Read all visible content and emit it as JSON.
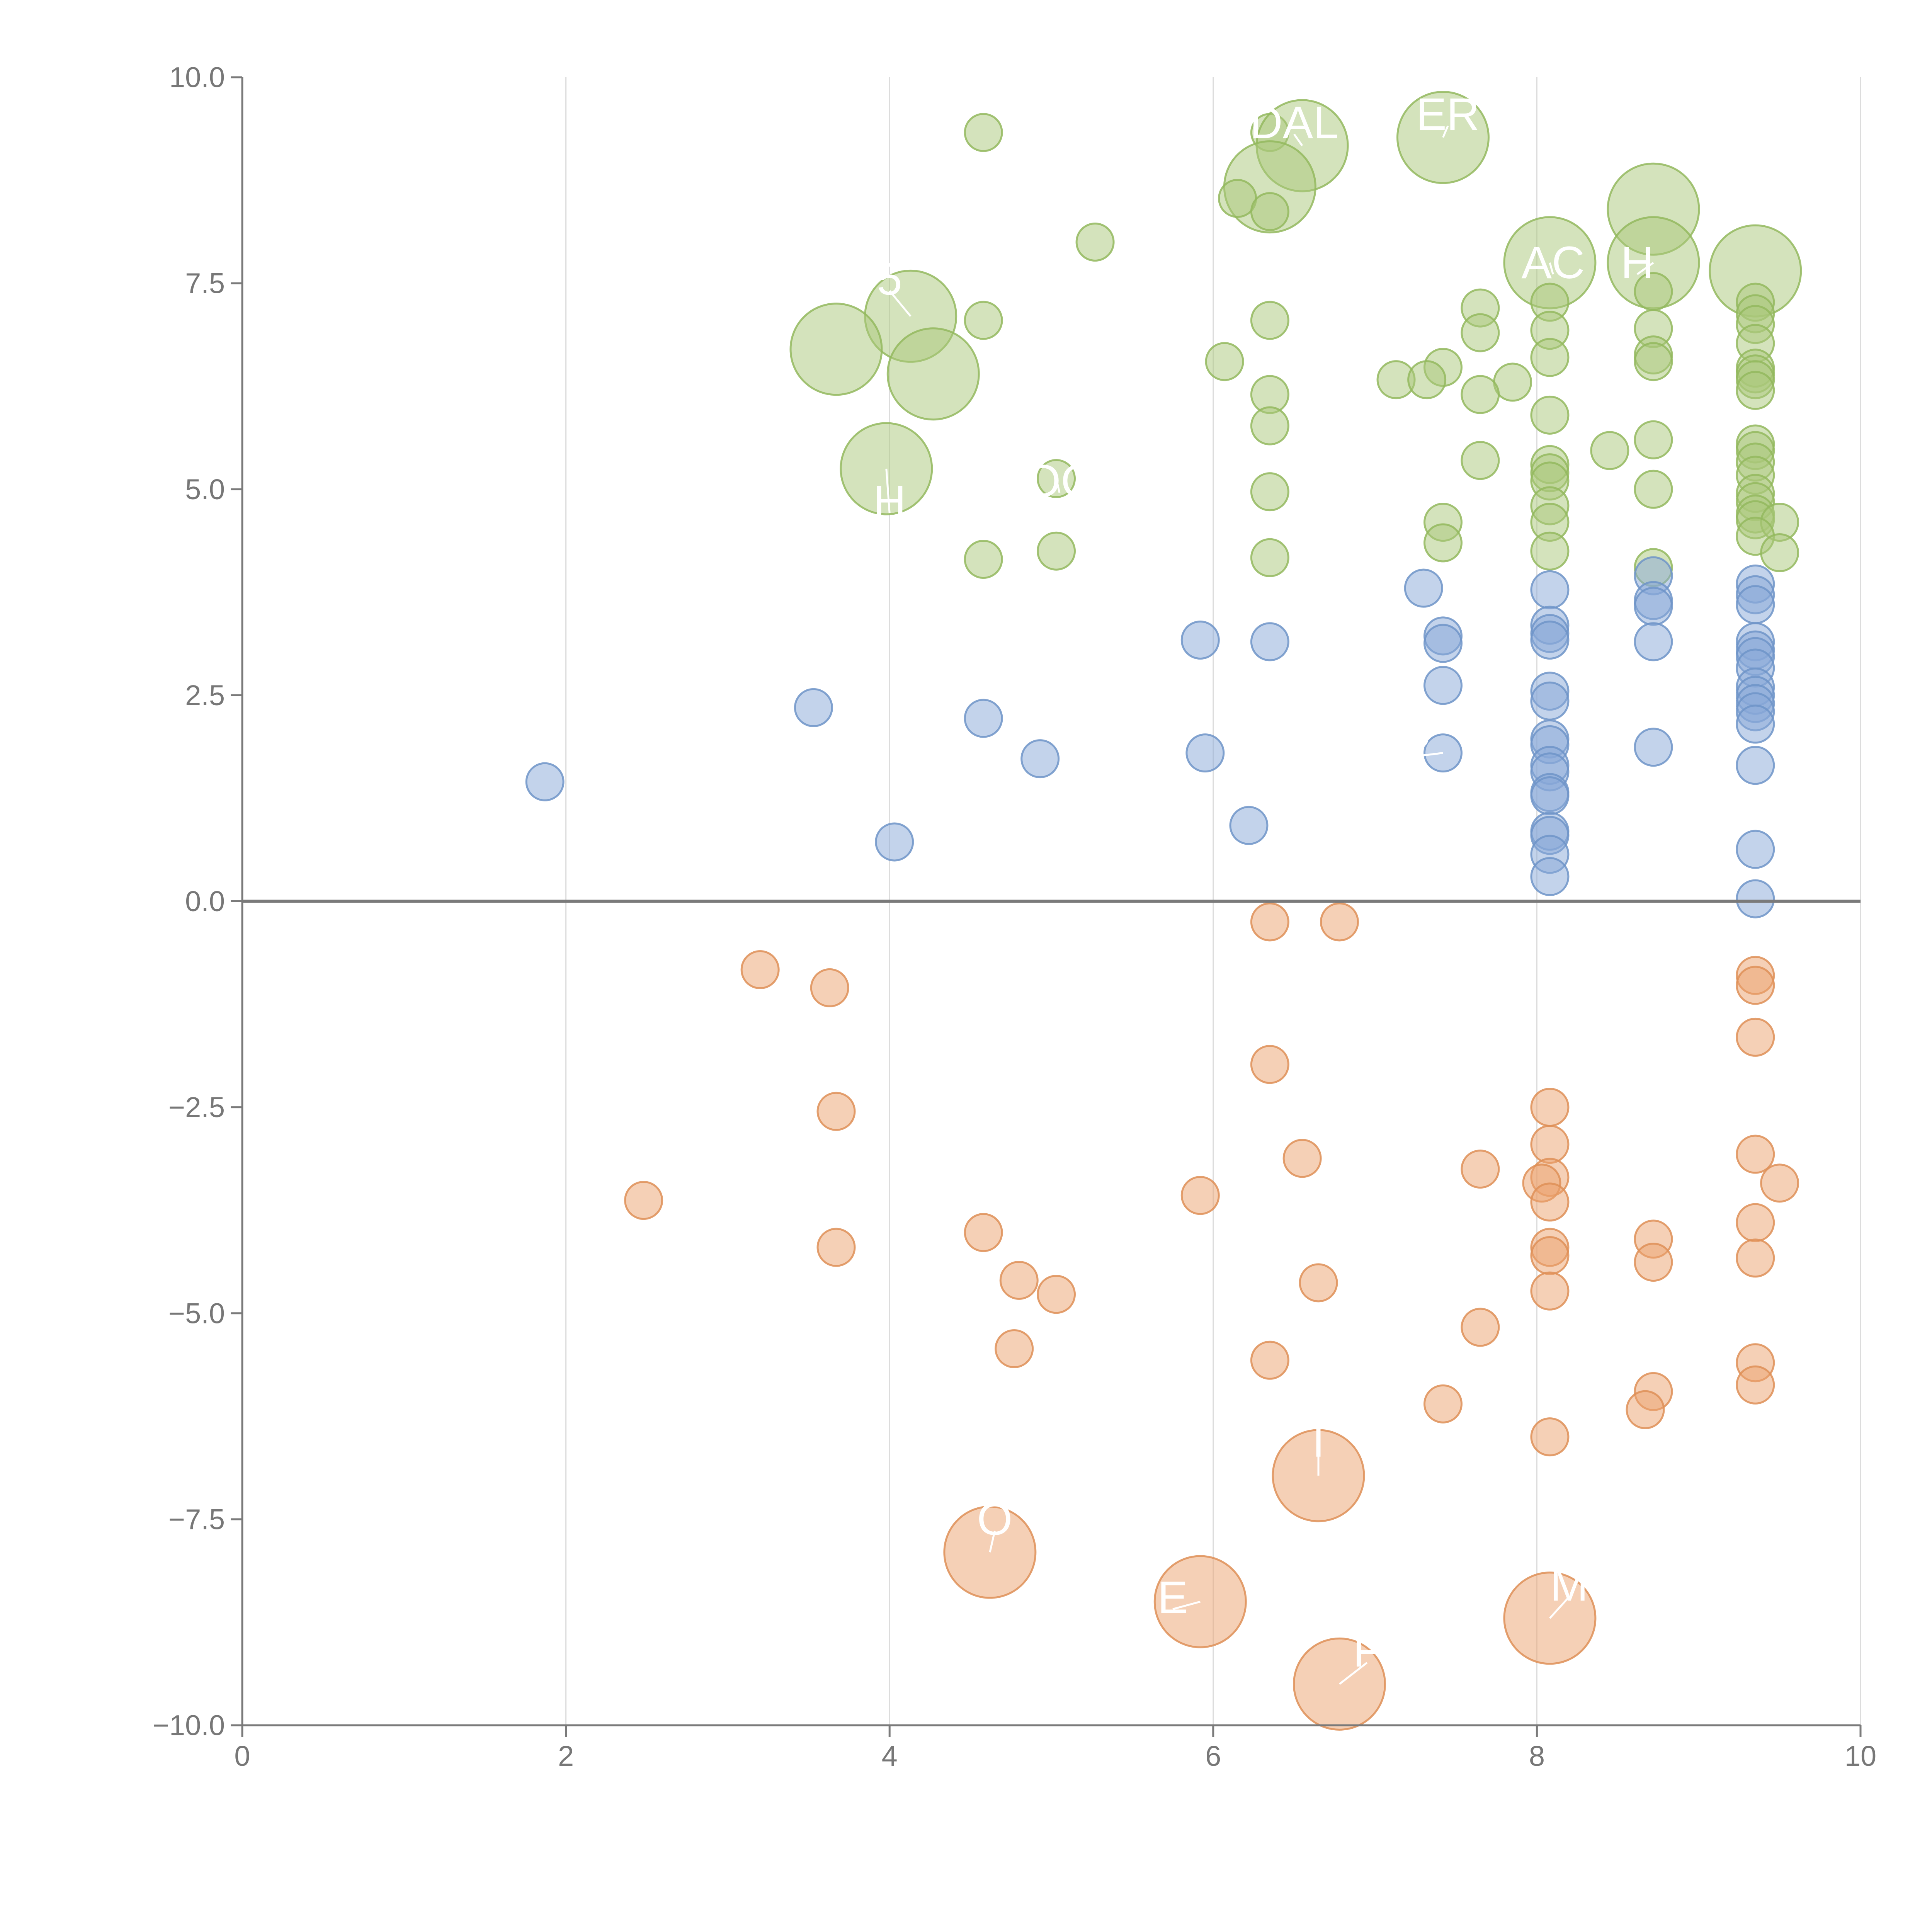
{
  "chart_data": {
    "type": "scatter",
    "subtype": "bubble",
    "title": "",
    "xlabel": "",
    "ylabel": "",
    "xlim": [
      0,
      10
    ],
    "ylim": [
      -10,
      10
    ],
    "xticks": [
      0,
      2,
      4,
      6,
      8,
      10
    ],
    "yticks": [
      -10,
      -7.5,
      -5,
      -2.5,
      0,
      2.5,
      5,
      7.5,
      10
    ],
    "ytick_labels": [
      "−10.0",
      "−7.5",
      "−5.0",
      "−2.5",
      "0.0",
      "2.5",
      "5.0",
      "7.5",
      "10.0"
    ],
    "xtick_labels": [
      "0",
      "2",
      "4",
      "6",
      "8",
      "10"
    ],
    "grid": "vertical",
    "zero_line": true,
    "colors": {
      "high": {
        "fill": "#a9c87a",
        "stroke": "#93b85e"
      },
      "mid": {
        "fill": "#87a8d8",
        "stroke": "#6f94c8"
      },
      "low": {
        "fill": "#eba26e",
        "stroke": "#de8f57"
      }
    },
    "series": [
      {
        "name": "high",
        "points": [
          [
            4.58,
            9.33,
            1
          ],
          [
            6.35,
            9.33,
            1
          ],
          [
            7.42,
            9.27,
            3
          ],
          [
            6.55,
            9.17,
            3
          ],
          [
            6.35,
            8.67,
            3
          ],
          [
            6.15,
            8.53,
            1
          ],
          [
            6.35,
            8.37,
            1
          ],
          [
            8.72,
            8.4,
            3
          ],
          [
            5.27,
            8.0,
            1
          ],
          [
            8.08,
            7.75,
            3
          ],
          [
            8.72,
            7.75,
            3
          ],
          [
            9.35,
            7.65,
            3
          ],
          [
            4.13,
            7.1,
            3
          ],
          [
            8.72,
            7.4,
            1
          ],
          [
            8.08,
            7.27,
            1
          ],
          [
            9.35,
            7.27,
            1
          ],
          [
            7.65,
            7.2,
            1
          ],
          [
            9.35,
            7.13,
            1
          ],
          [
            4.58,
            7.05,
            1
          ],
          [
            6.35,
            7.05,
            1
          ],
          [
            9.35,
            7.0,
            1
          ],
          [
            8.08,
            6.93,
            1
          ],
          [
            8.72,
            6.95,
            1
          ],
          [
            7.65,
            6.9,
            1
          ],
          [
            9.35,
            6.77,
            1
          ],
          [
            3.67,
            6.7,
            3
          ],
          [
            8.08,
            6.6,
            1
          ],
          [
            8.72,
            6.63,
            1
          ],
          [
            8.72,
            6.55,
            1
          ],
          [
            6.07,
            6.55,
            1
          ],
          [
            7.42,
            6.48,
            1
          ],
          [
            9.35,
            6.47,
            1
          ],
          [
            9.35,
            6.4,
            1
          ],
          [
            9.35,
            6.33,
            1
          ],
          [
            4.27,
            6.4,
            3
          ],
          [
            7.13,
            6.33,
            1
          ],
          [
            7.32,
            6.33,
            1
          ],
          [
            7.85,
            6.3,
            1
          ],
          [
            9.35,
            6.2,
            1
          ],
          [
            6.35,
            6.15,
            1
          ],
          [
            7.65,
            6.15,
            1
          ],
          [
            8.08,
            5.9,
            1
          ],
          [
            6.35,
            5.77,
            1
          ],
          [
            8.72,
            5.6,
            1
          ],
          [
            9.35,
            5.55,
            1
          ],
          [
            9.35,
            5.47,
            1
          ],
          [
            8.45,
            5.47,
            1
          ],
          [
            7.65,
            5.35,
            1
          ],
          [
            9.35,
            5.33,
            1
          ],
          [
            8.08,
            5.3,
            1
          ],
          [
            3.98,
            5.25,
            3
          ],
          [
            8.08,
            5.2,
            1
          ],
          [
            9.35,
            5.17,
            1
          ],
          [
            5.03,
            5.13,
            1
          ],
          [
            8.08,
            5.1,
            1
          ],
          [
            8.72,
            5.0,
            1
          ],
          [
            6.35,
            4.97,
            1
          ],
          [
            9.35,
            4.95,
            1
          ],
          [
            9.35,
            4.85,
            1
          ],
          [
            8.08,
            4.8,
            1
          ],
          [
            9.35,
            4.7,
            1
          ],
          [
            9.35,
            4.63,
            1
          ],
          [
            8.08,
            4.6,
            1
          ],
          [
            7.42,
            4.6,
            1
          ],
          [
            9.5,
            4.6,
            1
          ],
          [
            9.35,
            4.43,
            1
          ],
          [
            7.42,
            4.35,
            1
          ],
          [
            8.08,
            4.25,
            1
          ],
          [
            5.03,
            4.25,
            1
          ],
          [
            9.5,
            4.23,
            1
          ],
          [
            6.35,
            4.17,
            1
          ],
          [
            4.58,
            4.15,
            1
          ],
          [
            8.72,
            4.05,
            1
          ]
        ]
      },
      {
        "name": "mid",
        "points": [
          [
            8.72,
            3.95,
            1
          ],
          [
            9.35,
            3.85,
            1
          ],
          [
            7.3,
            3.8,
            1
          ],
          [
            8.08,
            3.78,
            1
          ],
          [
            9.35,
            3.72,
            1
          ],
          [
            8.72,
            3.65,
            1
          ],
          [
            9.35,
            3.6,
            1
          ],
          [
            8.72,
            3.58,
            1
          ],
          [
            8.08,
            3.35,
            1
          ],
          [
            8.08,
            3.25,
            1
          ],
          [
            7.42,
            3.22,
            1
          ],
          [
            8.08,
            3.17,
            1
          ],
          [
            5.92,
            3.17,
            1
          ],
          [
            8.72,
            3.15,
            1
          ],
          [
            6.35,
            3.15,
            1
          ],
          [
            7.42,
            3.13,
            1
          ],
          [
            9.35,
            3.15,
            1
          ],
          [
            9.35,
            3.05,
            1
          ],
          [
            9.35,
            2.97,
            1
          ],
          [
            9.35,
            2.83,
            1
          ],
          [
            7.42,
            2.62,
            1
          ],
          [
            9.35,
            2.6,
            1
          ],
          [
            8.08,
            2.55,
            1
          ],
          [
            9.35,
            2.5,
            1
          ],
          [
            8.08,
            2.43,
            1
          ],
          [
            9.35,
            2.4,
            1
          ],
          [
            9.35,
            2.3,
            1
          ],
          [
            3.53,
            2.35,
            1
          ],
          [
            4.58,
            2.22,
            1
          ],
          [
            9.35,
            2.15,
            1
          ],
          [
            8.08,
            1.97,
            1
          ],
          [
            8.08,
            1.9,
            1
          ],
          [
            8.72,
            1.87,
            1
          ],
          [
            5.95,
            1.8,
            1
          ],
          [
            7.42,
            1.8,
            1
          ],
          [
            4.93,
            1.73,
            1
          ],
          [
            8.08,
            1.65,
            1
          ],
          [
            9.35,
            1.65,
            1
          ],
          [
            8.08,
            1.57,
            1
          ],
          [
            1.87,
            1.45,
            1
          ],
          [
            8.08,
            1.32,
            1
          ],
          [
            8.08,
            1.28,
            1
          ],
          [
            6.22,
            0.92,
            1
          ],
          [
            8.08,
            0.85,
            1
          ],
          [
            8.08,
            0.8,
            1
          ],
          [
            4.03,
            0.72,
            1
          ],
          [
            9.35,
            0.63,
            1
          ],
          [
            8.08,
            0.57,
            1
          ],
          [
            8.08,
            0.3,
            1
          ],
          [
            9.35,
            0.03,
            1
          ]
        ]
      },
      {
        "name": "low",
        "points": [
          [
            6.35,
            -0.25,
            1
          ],
          [
            6.78,
            -0.25,
            1
          ],
          [
            3.2,
            -0.83,
            1
          ],
          [
            9.35,
            -0.9,
            1
          ],
          [
            9.35,
            -1.02,
            1
          ],
          [
            3.63,
            -1.05,
            1
          ],
          [
            9.35,
            -1.65,
            1
          ],
          [
            6.35,
            -1.98,
            1
          ],
          [
            8.08,
            -2.5,
            1
          ],
          [
            3.67,
            -2.55,
            1
          ],
          [
            8.08,
            -2.95,
            1
          ],
          [
            9.35,
            -3.07,
            1
          ],
          [
            6.55,
            -3.12,
            1
          ],
          [
            7.65,
            -3.25,
            1
          ],
          [
            8.08,
            -3.35,
            1
          ],
          [
            8.03,
            -3.42,
            1
          ],
          [
            9.5,
            -3.42,
            1
          ],
          [
            5.92,
            -3.57,
            1
          ],
          [
            2.48,
            -3.63,
            1
          ],
          [
            8.08,
            -3.65,
            1
          ],
          [
            9.35,
            -3.9,
            1
          ],
          [
            4.58,
            -4.02,
            1
          ],
          [
            8.72,
            -4.1,
            1
          ],
          [
            8.08,
            -4.2,
            1
          ],
          [
            3.67,
            -4.2,
            1
          ],
          [
            8.08,
            -4.3,
            1
          ],
          [
            9.35,
            -4.33,
            1
          ],
          [
            8.72,
            -4.38,
            1
          ],
          [
            4.8,
            -4.6,
            1
          ],
          [
            6.65,
            -4.63,
            1
          ],
          [
            8.08,
            -4.73,
            1
          ],
          [
            5.03,
            -4.77,
            1
          ],
          [
            7.65,
            -5.17,
            1
          ],
          [
            4.77,
            -5.43,
            1
          ],
          [
            6.35,
            -5.57,
            1
          ],
          [
            9.35,
            -5.6,
            1
          ],
          [
            9.35,
            -5.87,
            1
          ],
          [
            8.72,
            -5.95,
            1
          ],
          [
            7.42,
            -6.1,
            1
          ],
          [
            8.67,
            -6.17,
            1
          ],
          [
            8.08,
            -6.5,
            1
          ],
          [
            6.65,
            -6.97,
            3
          ],
          [
            4.62,
            -7.9,
            3
          ],
          [
            5.92,
            -8.5,
            3
          ],
          [
            8.08,
            -8.7,
            3
          ],
          [
            6.78,
            -9.5,
            3
          ]
        ]
      }
    ],
    "annotations": [
      {
        "text": "DAL",
        "x": 6.5,
        "y": 9.45,
        "px": 6.55,
        "py": 9.17
      },
      {
        "text": "ER",
        "x": 7.45,
        "y": 9.55,
        "px": 7.42,
        "py": 9.27
      },
      {
        "text": "AC",
        "x": 8.1,
        "y": 7.75,
        "px": 8.08,
        "py": 7.75
      },
      {
        "text": "H",
        "x": 8.62,
        "y": 7.75,
        "px": 8.72,
        "py": 7.75
      },
      {
        "text": "5",
        "x": 4.0,
        "y": 7.55,
        "px": 4.13,
        "py": 7.1
      },
      {
        "text": "OC",
        "x": 5.05,
        "y": 5.1,
        "px": 5.03,
        "py": 5.13
      },
      {
        "text": "H",
        "x": 4.0,
        "y": 4.85,
        "px": 3.98,
        "py": 5.25
      },
      {
        "text": "P",
        "x": 7.25,
        "y": 1.9,
        "px": 7.42,
        "py": 1.8
      },
      {
        "text": "T",
        "x": 6.65,
        "y": -6.55,
        "px": 6.65,
        "py": -6.97
      },
      {
        "text": "O",
        "x": 4.65,
        "y": -7.5,
        "px": 4.62,
        "py": -7.9
      },
      {
        "text": "E",
        "x": 5.75,
        "y": -8.45,
        "px": 5.92,
        "py": -8.5
      },
      {
        "text": "M",
        "x": 8.2,
        "y": -8.3,
        "px": 8.08,
        "py": -8.7
      },
      {
        "text": "F",
        "x": 6.95,
        "y": -9.1,
        "px": 6.78,
        "py": -9.5
      }
    ]
  }
}
